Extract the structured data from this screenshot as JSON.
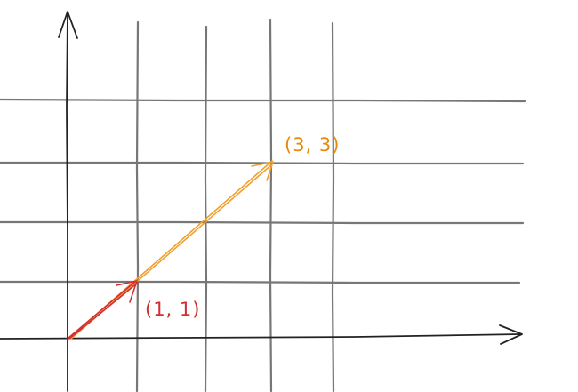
{
  "diagram": {
    "vectors": [
      {
        "name": "vector-1-1",
        "x": 1,
        "y": 1,
        "label": "(1, 1)",
        "color": "#d32f2f"
      },
      {
        "name": "vector-3-3",
        "x": 3,
        "y": 3,
        "label": "(3, 3)",
        "color": "#f0a030"
      }
    ],
    "colors": {
      "axis": "#222222",
      "grid": "#777777",
      "label_1_1": "#d32f2f",
      "label_3_3": "#e8890a"
    }
  }
}
